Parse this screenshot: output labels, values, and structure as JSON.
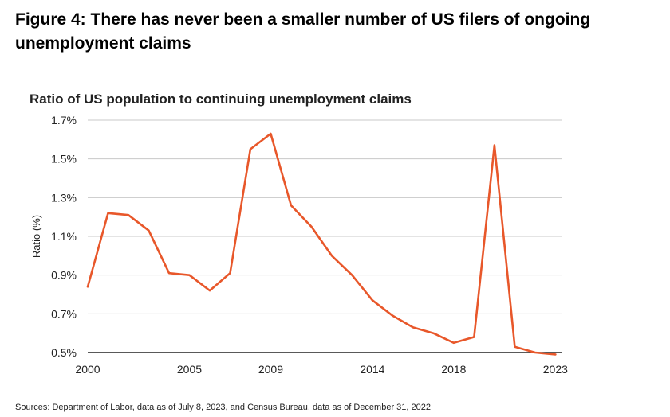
{
  "figure_title": "Figure 4: There has never been a smaller number of US filers of ongoing unemployment claims",
  "source_note": "Sources: Department of Labor, data as of July 8, 2023, and Census Bureau, data as of December 31, 2022",
  "colors": {
    "line": "#e8572a",
    "grid": "#c8c8c8",
    "axis": "#222222",
    "text": "#222222"
  },
  "chart_data": {
    "type": "line",
    "title": "Ratio of US population to continuing unemployment claims",
    "xlabel": "",
    "ylabel": "Ratio (%)",
    "xlim": [
      2000,
      2023.3
    ],
    "ylim": [
      0.5,
      1.7
    ],
    "x_ticks": [
      2000,
      2005,
      2009,
      2014,
      2018,
      2023
    ],
    "x_tick_labels": [
      "2000",
      "2005",
      "2009",
      "2014",
      "2018",
      "2023"
    ],
    "y_ticks": [
      0.5,
      0.7,
      0.9,
      1.1,
      1.3,
      1.5,
      1.7
    ],
    "y_tick_labels": [
      "0.5%",
      "0.7%",
      "0.9%",
      "1.1%",
      "1.3%",
      "1.5%",
      "1.7%"
    ],
    "grid": true,
    "series": [
      {
        "x": [
          2000,
          2001,
          2002,
          2003,
          2004,
          2005,
          2006,
          2007,
          2008,
          2009,
          2010,
          2011,
          2012,
          2013,
          2014,
          2015,
          2016,
          2017,
          2018,
          2019,
          2020,
          2021,
          2022,
          2023
        ],
        "y": [
          0.84,
          1.22,
          1.21,
          1.13,
          0.91,
          0.9,
          0.82,
          0.91,
          1.55,
          1.63,
          1.26,
          1.15,
          1.0,
          0.9,
          0.77,
          0.69,
          0.63,
          0.6,
          0.55,
          0.58,
          1.57,
          0.53,
          0.5,
          0.49
        ]
      }
    ]
  }
}
